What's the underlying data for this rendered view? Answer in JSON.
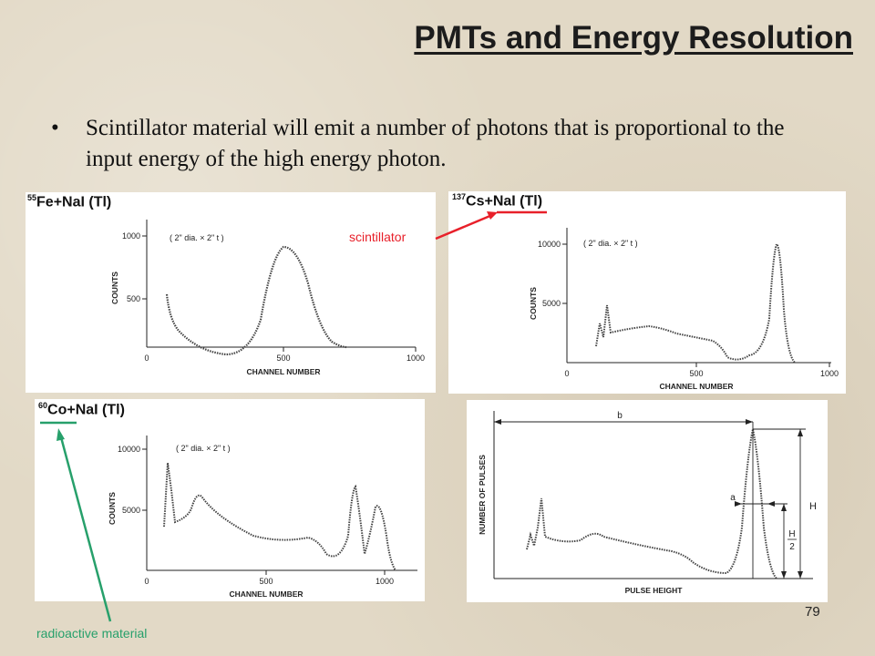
{
  "slide": {
    "title": "PMTs and Energy Resolution",
    "bullet_marker": "•",
    "bullet": "Scintillator material will emit a number of photons that is proportional to the input energy of the high energy photon.",
    "page_number": "79"
  },
  "annotations": {
    "scintillator": {
      "text": "scintillator",
      "color": "#e8202a"
    },
    "radioactive": {
      "text": "radioactive material",
      "color": "#27a06b"
    }
  },
  "panels": {
    "fe": {
      "label_sup": "55",
      "label_main": "Fe+NaI (Tl)",
      "note": "( 2\" dia. × 2\" t )",
      "xlabel": "CHANNEL NUMBER",
      "ylabel": "COUNTS",
      "xticks": [
        "0",
        "500",
        "1000"
      ],
      "yticks": [
        "500",
        "1000"
      ]
    },
    "cs": {
      "label_sup": "137",
      "label_main": "Cs+NaI (Tl)",
      "note": "( 2\" dia. × 2\" t )",
      "xlabel": "CHANNEL NUMBER",
      "ylabel": "COUNTS",
      "xticks": [
        "0",
        "500",
        "1000"
      ],
      "yticks": [
        "5000",
        "10000"
      ]
    },
    "co": {
      "label_sup": "60",
      "label_main": "Co+NaI (Tl)",
      "note": "( 2\" dia. × 2\" t )",
      "xlabel": "CHANNEL NUMBER",
      "ylabel": "COUNTS",
      "xticks": [
        "0",
        "500",
        "1000"
      ],
      "yticks": [
        "5000",
        "10000"
      ]
    },
    "pulse": {
      "xlabel": "PULSE HEIGHT",
      "ylabel": "NUMBER OF PULSES",
      "label_a": "a",
      "label_b": "b",
      "label_H": "H",
      "label_H_num": "H",
      "label_H_den": "2"
    }
  }
}
